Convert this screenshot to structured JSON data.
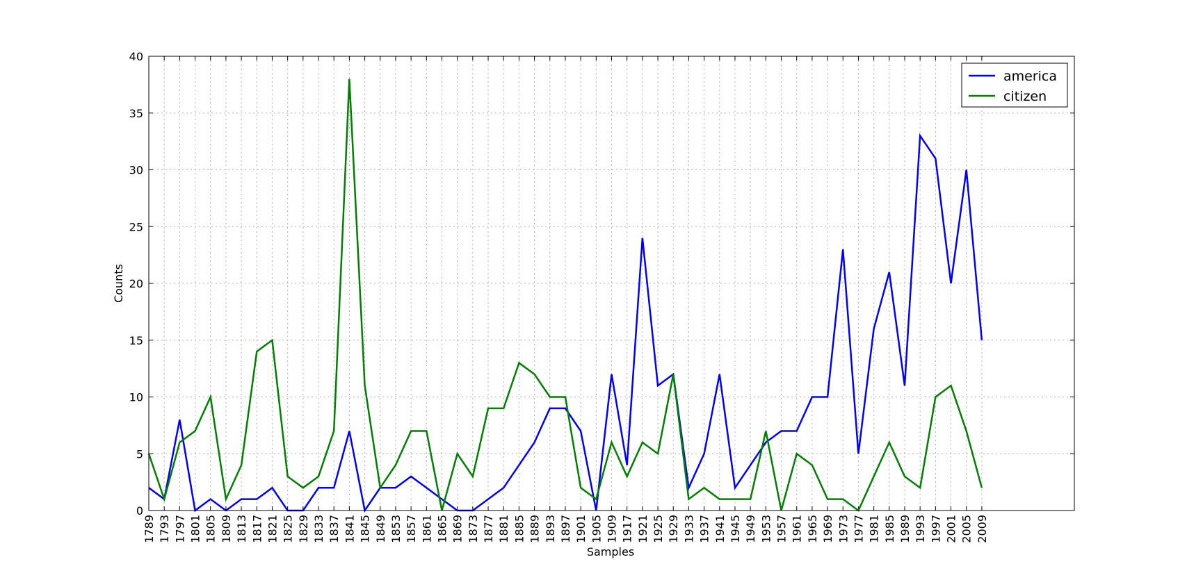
{
  "chart_data": {
    "type": "line",
    "xlabel": "Samples",
    "ylabel": "Counts",
    "categories": [
      "1789",
      "1793",
      "1797",
      "1801",
      "1805",
      "1809",
      "1813",
      "1817",
      "1821",
      "1825",
      "1829",
      "1833",
      "1837",
      "1841",
      "1845",
      "1849",
      "1853",
      "1857",
      "1861",
      "1865",
      "1869",
      "1873",
      "1877",
      "1881",
      "1885",
      "1889",
      "1893",
      "1897",
      "1901",
      "1905",
      "1909",
      "1917",
      "1921",
      "1925",
      "1929",
      "1933",
      "1937",
      "1941",
      "1945",
      "1949",
      "1953",
      "1957",
      "1961",
      "1965",
      "1969",
      "1973",
      "1977",
      "1981",
      "1985",
      "1989",
      "1993",
      "1997",
      "2001",
      "2005",
      "2009"
    ],
    "series": [
      {
        "name": "america",
        "color": "#0000ff",
        "values": [
          2,
          1,
          8,
          0,
          1,
          0,
          1,
          1,
          2,
          0,
          0,
          2,
          2,
          7,
          0,
          2,
          2,
          3,
          2,
          1,
          0,
          0,
          1,
          2,
          4,
          6,
          9,
          9,
          7,
          0,
          12,
          4,
          24,
          11,
          12,
          2,
          5,
          12,
          2,
          4,
          6,
          7,
          7,
          10,
          10,
          23,
          5,
          16,
          21,
          11,
          33,
          31,
          20,
          30,
          15
        ]
      },
      {
        "name": "citizen",
        "color": "#008000",
        "values": [
          5,
          1,
          6,
          7,
          10,
          1,
          4,
          14,
          15,
          3,
          2,
          3,
          7,
          38,
          11,
          2,
          4,
          7,
          7,
          0,
          5,
          3,
          9,
          9,
          13,
          12,
          10,
          10,
          2,
          1,
          6,
          3,
          6,
          5,
          12,
          1,
          2,
          1,
          1,
          1,
          7,
          0,
          5,
          4,
          1,
          1,
          0,
          3,
          6,
          3,
          2,
          10,
          11,
          7,
          2
        ]
      }
    ],
    "ylim": [
      0,
      40
    ],
    "yticks": [
      0,
      5,
      10,
      15,
      20,
      25,
      30,
      35,
      40
    ],
    "grid": true,
    "legend": "upper right"
  }
}
